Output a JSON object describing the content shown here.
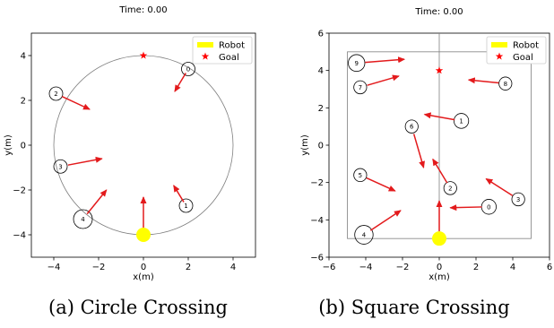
{
  "chart_data": [
    {
      "type": "scatter",
      "title": "Time: 0.00",
      "xlabel": "x(m)",
      "ylabel": "y(m)",
      "xlim": [
        -5,
        5
      ],
      "ylim": [
        -5,
        5
      ],
      "xticks": [
        "−4",
        "−2",
        "0",
        "2",
        "4"
      ],
      "yticks": [
        "−4",
        "−2",
        "0",
        "2",
        "4"
      ],
      "legend": {
        "placement": "top-right",
        "entries": [
          "Robot",
          "Goal"
        ]
      },
      "boundary": {
        "shape": "circle",
        "radius": 4
      },
      "robot": {
        "x": 0,
        "y": -4,
        "color": "#ffff00"
      },
      "goal": {
        "x": 0,
        "y": 4,
        "color": "#ff0000"
      },
      "humans": [
        {
          "id": "0",
          "x": 2.0,
          "y": 3.4,
          "r": 0.3,
          "dx": -0.6,
          "dy": -1.0
        },
        {
          "id": "1",
          "x": 1.9,
          "y": -2.7,
          "r": 0.3,
          "dx": -0.55,
          "dy": 0.9
        },
        {
          "id": "2",
          "x": -3.9,
          "y": 2.3,
          "r": 0.3,
          "dx": 1.5,
          "dy": -0.7
        },
        {
          "id": "3",
          "x": -3.7,
          "y": -0.95,
          "r": 0.3,
          "dx": 1.85,
          "dy": 0.35
        },
        {
          "id": "4",
          "x": -2.7,
          "y": -3.3,
          "r": 0.42,
          "dx": 1.05,
          "dy": 1.3
        }
      ],
      "caption": "(a) Circle Crossing"
    },
    {
      "type": "scatter",
      "title": "Time: 0.00",
      "xlabel": "x(m)",
      "ylabel": "y(m)",
      "xlim": [
        -6,
        6
      ],
      "ylim": [
        -6,
        6
      ],
      "xticks": [
        "−6",
        "−4",
        "−2",
        "0",
        "2",
        "4",
        "6"
      ],
      "yticks": [
        "−6",
        "−4",
        "−2",
        "0",
        "2",
        "4",
        "6"
      ],
      "legend": {
        "placement": "top-right",
        "entries": [
          "Robot",
          "Goal"
        ]
      },
      "boundary": {
        "shape": "square",
        "half_width": 5
      },
      "robot": {
        "x": 0,
        "y": -5,
        "color": "#ffff00"
      },
      "goal": {
        "x": 0,
        "y": 4,
        "color": "#ff0000"
      },
      "humans": [
        {
          "id": "0",
          "x": 2.7,
          "y": -3.3,
          "r": 0.4,
          "dx": -2.1,
          "dy": -0.05
        },
        {
          "id": "1",
          "x": 1.2,
          "y": 1.3,
          "r": 0.4,
          "dx": -2.0,
          "dy": 0.35
        },
        {
          "id": "2",
          "x": 0.6,
          "y": -2.3,
          "r": 0.35,
          "dx": -0.95,
          "dy": 1.55
        },
        {
          "id": "3",
          "x": 4.3,
          "y": -2.9,
          "r": 0.35,
          "dx": -1.75,
          "dy": 1.1
        },
        {
          "id": "4",
          "x": -4.1,
          "y": -4.8,
          "r": 0.5,
          "dx": 2.0,
          "dy": 1.3
        },
        {
          "id": "5",
          "x": -4.3,
          "y": -1.6,
          "r": 0.35,
          "dx": 1.9,
          "dy": -0.85
        },
        {
          "id": "6",
          "x": -1.5,
          "y": 1.0,
          "r": 0.35,
          "dx": 0.65,
          "dy": -2.2
        },
        {
          "id": "7",
          "x": -4.3,
          "y": 3.1,
          "r": 0.35,
          "dx": 2.1,
          "dy": 0.6
        },
        {
          "id": "8",
          "x": 3.6,
          "y": 3.3,
          "r": 0.35,
          "dx": -2.0,
          "dy": 0.2
        },
        {
          "id": "9",
          "x": -4.5,
          "y": 4.4,
          "r": 0.45,
          "dx": 2.6,
          "dy": 0.2
        }
      ],
      "caption": "(b) Square Crossing"
    }
  ]
}
